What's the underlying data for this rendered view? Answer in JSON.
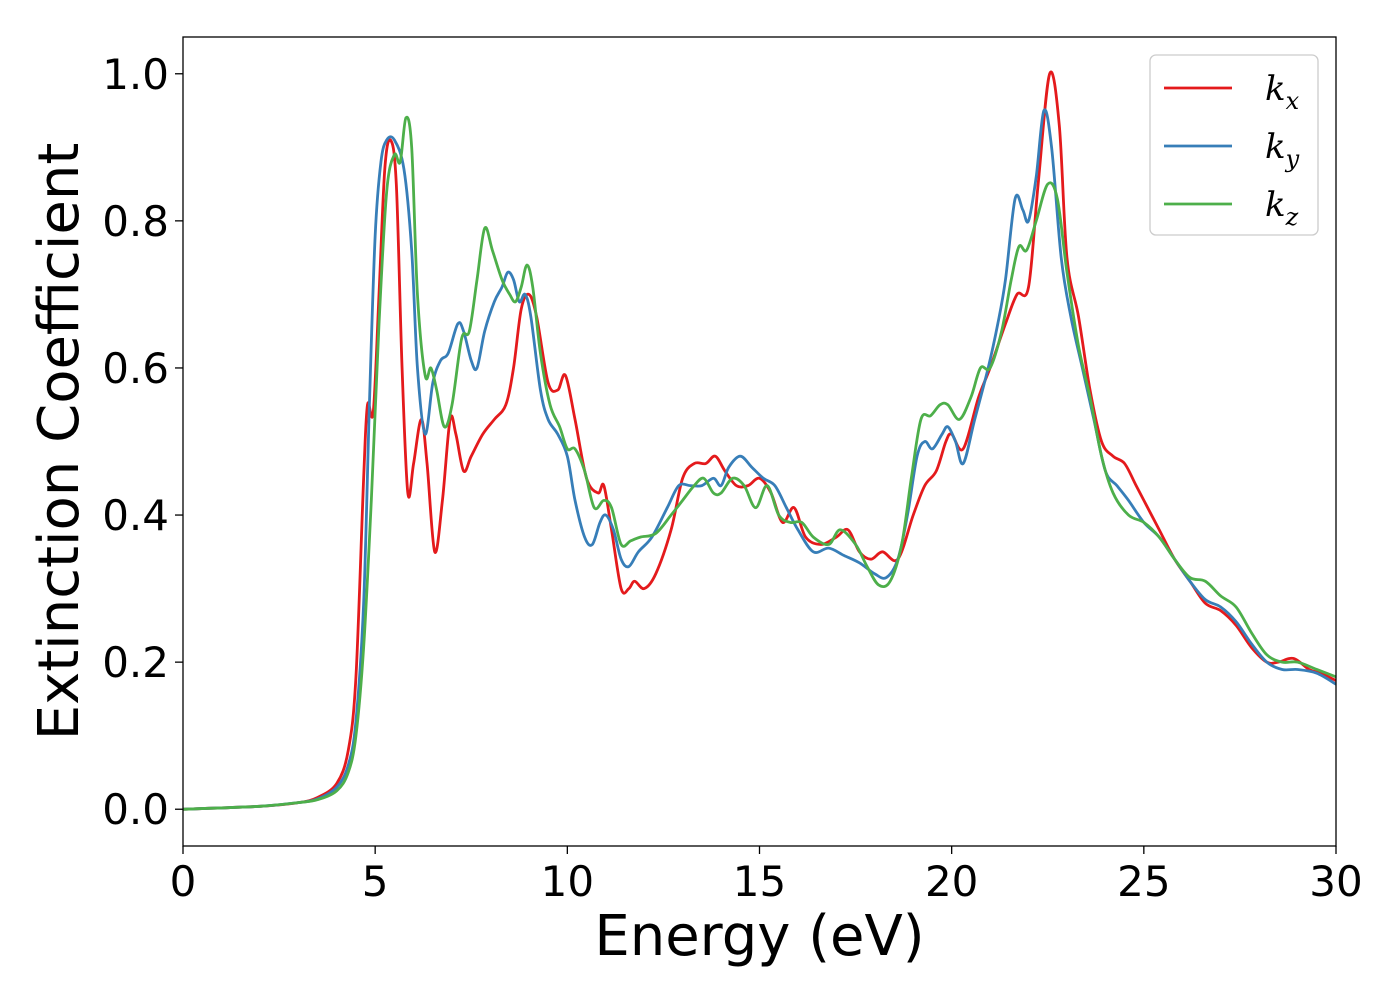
{
  "chart_data": {
    "type": "line",
    "title": "",
    "xlabel": "Energy (eV)",
    "ylabel": "Extinction Coefficient",
    "xlim": [
      0,
      30
    ],
    "ylim": [
      -0.05,
      1.05
    ],
    "xticks": [
      "0",
      "5",
      "10",
      "15",
      "20",
      "25",
      "30"
    ],
    "yticks": [
      "0.0",
      "0.2",
      "0.4",
      "0.6",
      "0.8",
      "1.0"
    ],
    "grid": false,
    "legend_position": "top-right",
    "series": [
      {
        "name": "k",
        "subscript": "x",
        "color": "#e41a1c",
        "points": [
          [
            0,
            0
          ],
          [
            2,
            0.004
          ],
          [
            3,
            0.009
          ],
          [
            3.5,
            0.016
          ],
          [
            4,
            0.035
          ],
          [
            4.3,
            0.08
          ],
          [
            4.5,
            0.18
          ],
          [
            4.7,
            0.45
          ],
          [
            4.8,
            0.55
          ],
          [
            4.95,
            0.54
          ],
          [
            5.1,
            0.7
          ],
          [
            5.25,
            0.87
          ],
          [
            5.4,
            0.91
          ],
          [
            5.55,
            0.85
          ],
          [
            5.7,
            0.6
          ],
          [
            5.85,
            0.43
          ],
          [
            6.0,
            0.47
          ],
          [
            6.2,
            0.53
          ],
          [
            6.35,
            0.47
          ],
          [
            6.55,
            0.35
          ],
          [
            6.75,
            0.42
          ],
          [
            6.95,
            0.53
          ],
          [
            7.1,
            0.51
          ],
          [
            7.3,
            0.46
          ],
          [
            7.5,
            0.48
          ],
          [
            7.8,
            0.51
          ],
          [
            8.1,
            0.53
          ],
          [
            8.4,
            0.55
          ],
          [
            8.6,
            0.6
          ],
          [
            8.8,
            0.68
          ],
          [
            9.0,
            0.7
          ],
          [
            9.2,
            0.67
          ],
          [
            9.5,
            0.58
          ],
          [
            9.75,
            0.57
          ],
          [
            9.95,
            0.59
          ],
          [
            10.2,
            0.53
          ],
          [
            10.5,
            0.45
          ],
          [
            10.8,
            0.43
          ],
          [
            10.95,
            0.44
          ],
          [
            11.15,
            0.38
          ],
          [
            11.4,
            0.3
          ],
          [
            11.6,
            0.3
          ],
          [
            11.75,
            0.31
          ],
          [
            12.0,
            0.3
          ],
          [
            12.3,
            0.32
          ],
          [
            12.7,
            0.38
          ],
          [
            13.0,
            0.45
          ],
          [
            13.3,
            0.47
          ],
          [
            13.6,
            0.47
          ],
          [
            13.85,
            0.48
          ],
          [
            14.1,
            0.46
          ],
          [
            14.4,
            0.44
          ],
          [
            14.7,
            0.44
          ],
          [
            15.0,
            0.45
          ],
          [
            15.3,
            0.43
          ],
          [
            15.6,
            0.39
          ],
          [
            15.9,
            0.41
          ],
          [
            16.2,
            0.37
          ],
          [
            16.6,
            0.36
          ],
          [
            17.0,
            0.37
          ],
          [
            17.3,
            0.38
          ],
          [
            17.6,
            0.35
          ],
          [
            17.9,
            0.34
          ],
          [
            18.2,
            0.35
          ],
          [
            18.6,
            0.34
          ],
          [
            19.0,
            0.4
          ],
          [
            19.3,
            0.44
          ],
          [
            19.6,
            0.46
          ],
          [
            19.85,
            0.5
          ],
          [
            20.0,
            0.51
          ],
          [
            20.3,
            0.49
          ],
          [
            20.7,
            0.56
          ],
          [
            21.0,
            0.6
          ],
          [
            21.4,
            0.66
          ],
          [
            21.7,
            0.7
          ],
          [
            22.0,
            0.71
          ],
          [
            22.25,
            0.85
          ],
          [
            22.55,
            1.0
          ],
          [
            22.8,
            0.93
          ],
          [
            23.0,
            0.75
          ],
          [
            23.3,
            0.67
          ],
          [
            23.6,
            0.57
          ],
          [
            23.9,
            0.5
          ],
          [
            24.2,
            0.48
          ],
          [
            24.5,
            0.47
          ],
          [
            24.8,
            0.44
          ],
          [
            25.1,
            0.41
          ],
          [
            25.4,
            0.38
          ],
          [
            25.8,
            0.34
          ],
          [
            26.2,
            0.31
          ],
          [
            26.6,
            0.28
          ],
          [
            27.0,
            0.27
          ],
          [
            27.4,
            0.25
          ],
          [
            27.8,
            0.22
          ],
          [
            28.2,
            0.2
          ],
          [
            28.5,
            0.2
          ],
          [
            28.9,
            0.205
          ],
          [
            29.3,
            0.19
          ],
          [
            29.6,
            0.185
          ],
          [
            30,
            0.175
          ]
        ]
      },
      {
        "name": "k",
        "subscript": "y",
        "color": "#377eb8",
        "points": [
          [
            0,
            0
          ],
          [
            2,
            0.004
          ],
          [
            3,
            0.009
          ],
          [
            3.5,
            0.014
          ],
          [
            4,
            0.03
          ],
          [
            4.3,
            0.06
          ],
          [
            4.5,
            0.12
          ],
          [
            4.7,
            0.28
          ],
          [
            4.85,
            0.55
          ],
          [
            5.0,
            0.78
          ],
          [
            5.15,
            0.88
          ],
          [
            5.3,
            0.91
          ],
          [
            5.5,
            0.91
          ],
          [
            5.75,
            0.87
          ],
          [
            5.95,
            0.76
          ],
          [
            6.1,
            0.6
          ],
          [
            6.3,
            0.51
          ],
          [
            6.5,
            0.58
          ],
          [
            6.7,
            0.61
          ],
          [
            6.9,
            0.62
          ],
          [
            7.15,
            0.66
          ],
          [
            7.3,
            0.65
          ],
          [
            7.5,
            0.61
          ],
          [
            7.65,
            0.6
          ],
          [
            7.85,
            0.65
          ],
          [
            8.1,
            0.69
          ],
          [
            8.3,
            0.71
          ],
          [
            8.45,
            0.73
          ],
          [
            8.6,
            0.72
          ],
          [
            8.75,
            0.69
          ],
          [
            8.9,
            0.7
          ],
          [
            9.05,
            0.67
          ],
          [
            9.3,
            0.57
          ],
          [
            9.5,
            0.53
          ],
          [
            9.75,
            0.51
          ],
          [
            10.0,
            0.48
          ],
          [
            10.2,
            0.42
          ],
          [
            10.45,
            0.37
          ],
          [
            10.65,
            0.36
          ],
          [
            10.85,
            0.39
          ],
          [
            11.0,
            0.4
          ],
          [
            11.2,
            0.38
          ],
          [
            11.4,
            0.34
          ],
          [
            11.6,
            0.33
          ],
          [
            11.85,
            0.35
          ],
          [
            12.2,
            0.37
          ],
          [
            12.6,
            0.41
          ],
          [
            12.9,
            0.44
          ],
          [
            13.2,
            0.44
          ],
          [
            13.5,
            0.44
          ],
          [
            13.8,
            0.45
          ],
          [
            14.0,
            0.44
          ],
          [
            14.2,
            0.465
          ],
          [
            14.5,
            0.48
          ],
          [
            14.8,
            0.465
          ],
          [
            15.1,
            0.45
          ],
          [
            15.4,
            0.44
          ],
          [
            15.7,
            0.41
          ],
          [
            16.0,
            0.38
          ],
          [
            16.4,
            0.35
          ],
          [
            16.8,
            0.355
          ],
          [
            17.2,
            0.345
          ],
          [
            17.6,
            0.335
          ],
          [
            18.0,
            0.32
          ],
          [
            18.3,
            0.315
          ],
          [
            18.6,
            0.34
          ],
          [
            18.85,
            0.4
          ],
          [
            19.1,
            0.48
          ],
          [
            19.3,
            0.5
          ],
          [
            19.5,
            0.49
          ],
          [
            19.75,
            0.51
          ],
          [
            19.9,
            0.52
          ],
          [
            20.1,
            0.5
          ],
          [
            20.3,
            0.47
          ],
          [
            20.6,
            0.53
          ],
          [
            20.95,
            0.6
          ],
          [
            21.2,
            0.66
          ],
          [
            21.4,
            0.72
          ],
          [
            21.65,
            0.83
          ],
          [
            21.85,
            0.815
          ],
          [
            22.0,
            0.8
          ],
          [
            22.2,
            0.86
          ],
          [
            22.4,
            0.95
          ],
          [
            22.6,
            0.9
          ],
          [
            22.85,
            0.75
          ],
          [
            23.1,
            0.67
          ],
          [
            23.4,
            0.6
          ],
          [
            23.7,
            0.53
          ],
          [
            24.0,
            0.46
          ],
          [
            24.3,
            0.44
          ],
          [
            24.6,
            0.42
          ],
          [
            25.0,
            0.39
          ],
          [
            25.4,
            0.37
          ],
          [
            25.8,
            0.34
          ],
          [
            26.2,
            0.31
          ],
          [
            26.6,
            0.285
          ],
          [
            27.0,
            0.275
          ],
          [
            27.4,
            0.255
          ],
          [
            27.8,
            0.225
          ],
          [
            28.2,
            0.2
          ],
          [
            28.6,
            0.19
          ],
          [
            29.0,
            0.19
          ],
          [
            29.5,
            0.185
          ],
          [
            30,
            0.17
          ]
        ]
      },
      {
        "name": "k",
        "subscript": "z",
        "color": "#4daf4a",
        "points": [
          [
            0,
            0
          ],
          [
            2,
            0.004
          ],
          [
            3,
            0.009
          ],
          [
            3.5,
            0.013
          ],
          [
            4,
            0.025
          ],
          [
            4.3,
            0.05
          ],
          [
            4.5,
            0.1
          ],
          [
            4.7,
            0.22
          ],
          [
            4.9,
            0.42
          ],
          [
            5.1,
            0.66
          ],
          [
            5.3,
            0.84
          ],
          [
            5.5,
            0.89
          ],
          [
            5.65,
            0.88
          ],
          [
            5.8,
            0.94
          ],
          [
            5.95,
            0.9
          ],
          [
            6.1,
            0.7
          ],
          [
            6.3,
            0.59
          ],
          [
            6.45,
            0.6
          ],
          [
            6.6,
            0.57
          ],
          [
            6.8,
            0.52
          ],
          [
            7.0,
            0.55
          ],
          [
            7.25,
            0.64
          ],
          [
            7.45,
            0.65
          ],
          [
            7.65,
            0.72
          ],
          [
            7.85,
            0.79
          ],
          [
            8.05,
            0.76
          ],
          [
            8.3,
            0.72
          ],
          [
            8.5,
            0.7
          ],
          [
            8.65,
            0.69
          ],
          [
            8.8,
            0.71
          ],
          [
            8.95,
            0.74
          ],
          [
            9.1,
            0.71
          ],
          [
            9.3,
            0.62
          ],
          [
            9.55,
            0.55
          ],
          [
            9.8,
            0.52
          ],
          [
            10.0,
            0.49
          ],
          [
            10.2,
            0.49
          ],
          [
            10.45,
            0.46
          ],
          [
            10.7,
            0.41
          ],
          [
            10.95,
            0.42
          ],
          [
            11.15,
            0.41
          ],
          [
            11.4,
            0.36
          ],
          [
            11.65,
            0.365
          ],
          [
            11.9,
            0.37
          ],
          [
            12.3,
            0.375
          ],
          [
            12.7,
            0.4
          ],
          [
            13.0,
            0.42
          ],
          [
            13.3,
            0.44
          ],
          [
            13.55,
            0.45
          ],
          [
            13.8,
            0.43
          ],
          [
            14.0,
            0.43
          ],
          [
            14.3,
            0.45
          ],
          [
            14.6,
            0.44
          ],
          [
            14.9,
            0.41
          ],
          [
            15.2,
            0.44
          ],
          [
            15.5,
            0.4
          ],
          [
            15.8,
            0.39
          ],
          [
            16.1,
            0.39
          ],
          [
            16.4,
            0.37
          ],
          [
            16.8,
            0.36
          ],
          [
            17.1,
            0.38
          ],
          [
            17.5,
            0.36
          ],
          [
            17.8,
            0.33
          ],
          [
            18.1,
            0.305
          ],
          [
            18.4,
            0.31
          ],
          [
            18.7,
            0.36
          ],
          [
            18.95,
            0.45
          ],
          [
            19.2,
            0.53
          ],
          [
            19.45,
            0.535
          ],
          [
            19.7,
            0.55
          ],
          [
            19.9,
            0.55
          ],
          [
            20.2,
            0.53
          ],
          [
            20.5,
            0.56
          ],
          [
            20.75,
            0.6
          ],
          [
            21.0,
            0.6
          ],
          [
            21.3,
            0.65
          ],
          [
            21.55,
            0.72
          ],
          [
            21.75,
            0.765
          ],
          [
            21.95,
            0.76
          ],
          [
            22.2,
            0.8
          ],
          [
            22.5,
            0.85
          ],
          [
            22.75,
            0.83
          ],
          [
            23.0,
            0.73
          ],
          [
            23.3,
            0.63
          ],
          [
            23.6,
            0.56
          ],
          [
            23.9,
            0.48
          ],
          [
            24.2,
            0.43
          ],
          [
            24.6,
            0.4
          ],
          [
            25.0,
            0.39
          ],
          [
            25.4,
            0.37
          ],
          [
            25.8,
            0.34
          ],
          [
            26.2,
            0.315
          ],
          [
            26.6,
            0.31
          ],
          [
            27.0,
            0.29
          ],
          [
            27.4,
            0.275
          ],
          [
            27.8,
            0.24
          ],
          [
            28.2,
            0.21
          ],
          [
            28.6,
            0.2
          ],
          [
            29.0,
            0.2
          ],
          [
            29.5,
            0.19
          ],
          [
            30,
            0.18
          ]
        ]
      }
    ]
  }
}
